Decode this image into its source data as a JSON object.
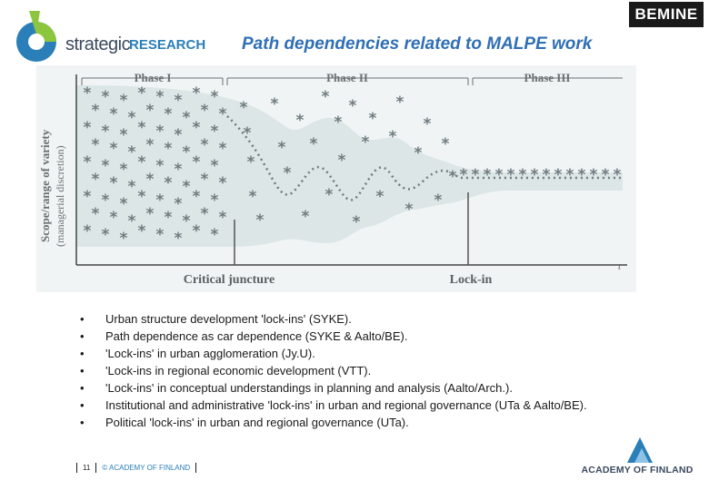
{
  "header": {
    "logo_word1": "strategic",
    "logo_word2": "RESEARCH",
    "brand_badge": "BEMINE",
    "title": "Path dependencies related to MALPE work"
  },
  "figure": {
    "phase_labels": [
      "Phase I",
      "Phase II",
      "Phase III"
    ],
    "y_label_line1": "Scope/range of variety",
    "y_label_line2": "(managerial discretion)",
    "x_label_left": "Critical juncture",
    "x_label_right": "Lock-in",
    "t_label": "t",
    "colors": {
      "band": "#dce6e6",
      "axis": "#444444",
      "asterisk": "#6f7b80",
      "text": "#6b7073"
    }
  },
  "bullets": [
    "Urban structure development 'lock-ins' (SYKE).",
    "Path dependence as car dependence (SYKE & Aalto/BE).",
    "'Lock-ins' in urban agglomeration (Jy.U).",
    "'Lock-ins in regional economic development (VTT).",
    "'Lock-ins' in conceptual understandings in planning and analysis (Aalto/Arch.).",
    "Institutional and administrative 'lock-ins' in urban and regional governance (UTa & Aalto/BE).",
    "Political 'lock-ins' in urban and regional governance (UTa)."
  ],
  "bullet_symbol": "•",
  "footer": {
    "page_number": "11",
    "copyright": "© ACADEMY OF FINLAND"
  },
  "footer_logo": {
    "name": "ACADEMY OF FINLAND",
    "color": "#2a7fb8"
  }
}
